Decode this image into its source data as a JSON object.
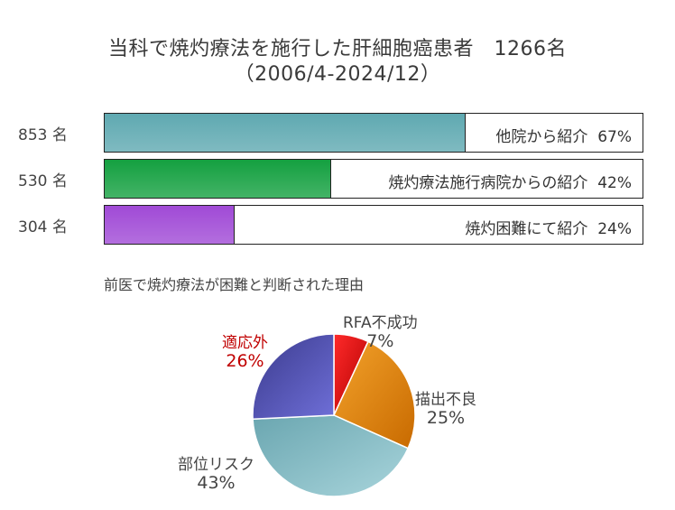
{
  "title_line1": "当科で焼灼療法を施行した肝細胞癌患者　1266名",
  "title_line2": "（2006/4-2024/12）",
  "bars": [
    {
      "count": "853 名",
      "label": "他院から紹介",
      "pct": "67%",
      "value": 67,
      "color": "#5fa9b1"
    },
    {
      "count": "530 名",
      "label": "焼灼療法施行病院からの紹介",
      "pct": "42%",
      "value": 42,
      "color": "#14a040"
    },
    {
      "count": "304 名",
      "label": "焼灼困難にて紹介",
      "pct": "24%",
      "value": 24,
      "color": "#a04ad6"
    }
  ],
  "pie_title": "前医で焼灼療法が困難と判断された理由",
  "chart_data": {
    "type": "pie",
    "title": "前医で焼灼療法が困難と判断された理由",
    "slices": [
      {
        "label": "RFA不成功",
        "pct_text": "7%",
        "value": 7,
        "color": "#e00808"
      },
      {
        "label": "描出不良",
        "pct_text": "25%",
        "value": 25,
        "color": "#e8870a"
      },
      {
        "label": "部位リスク",
        "pct_text": "43%",
        "value": 43,
        "color": "#7bb8c2"
      },
      {
        "label": "適応外",
        "pct_text": "26%",
        "value": 26,
        "color": "#5656c2"
      }
    ]
  }
}
